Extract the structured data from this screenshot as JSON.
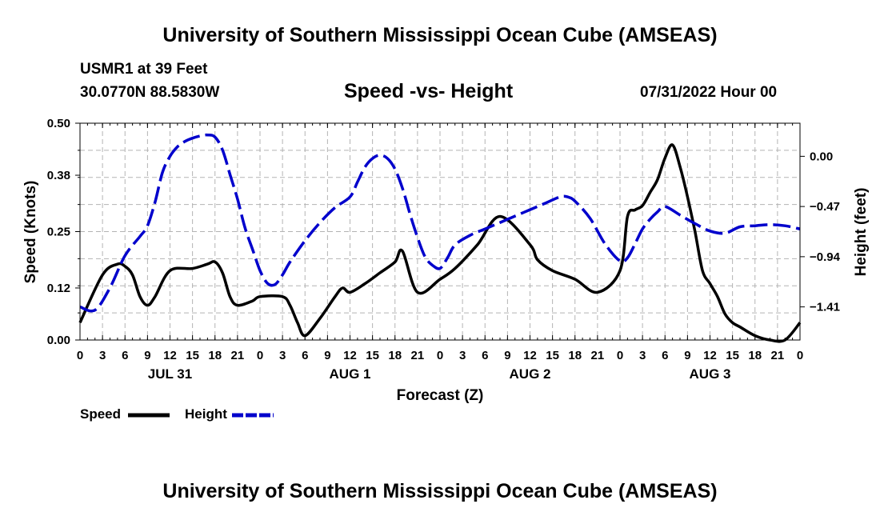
{
  "header": {
    "title": "University of Southern Mississippi Ocean Cube (AMSEAS)",
    "station": "USMR1 at 39 Feet",
    "coords": "30.0770N  88.5830W",
    "date": "07/31/2022 Hour 00"
  },
  "footer": {
    "title": "University of Southern Mississippi Ocean Cube (AMSEAS)"
  },
  "chart_data": {
    "type": "line",
    "title": "Speed -vs- Height",
    "xlabel": "Forecast (Z)",
    "ylabel": "Speed (Knots)",
    "y2label": "Height (feet)",
    "x_range_hours": [
      0,
      96
    ],
    "ylim": [
      0,
      0.5
    ],
    "y2lim": [
      -1.72,
      0.31
    ],
    "y_ticks": [
      "0.00",
      "0.12",
      "0.25",
      "0.38",
      "0.50"
    ],
    "y2_ticks": [
      "0.00",
      "−0.47",
      "−0.94",
      "−1.41"
    ],
    "y2_tick_values": [
      0.0,
      -0.47,
      -0.94,
      -1.41
    ],
    "x_tick_labels": [
      "0",
      "3",
      "6",
      "9",
      "12",
      "15",
      "18",
      "21",
      "0",
      "3",
      "6",
      "9",
      "12",
      "15",
      "18",
      "21",
      "0",
      "3",
      "6",
      "9",
      "12",
      "15",
      "18",
      "21",
      "0",
      "3",
      "6",
      "9",
      "12",
      "15",
      "18",
      "21",
      "0"
    ],
    "day_labels": [
      {
        "hour": 12,
        "label": "JUL 31"
      },
      {
        "hour": 36,
        "label": "AUG 1"
      },
      {
        "hour": 60,
        "label": "AUG 2"
      },
      {
        "hour": 84,
        "label": "AUG 3"
      }
    ],
    "series": [
      {
        "name": "Speed",
        "axis": "left",
        "color": "#000000",
        "style": "solid",
        "x": [
          0,
          3,
          5,
          6,
          7,
          8,
          9,
          10,
          12,
          15,
          17,
          18,
          19,
          20,
          21,
          23,
          24,
          27,
          28,
          29,
          30,
          32,
          34,
          35,
          36,
          38,
          40,
          42,
          43,
          45,
          48,
          50,
          53,
          56,
          60,
          61,
          63,
          66,
          69,
          72,
          73,
          74,
          75,
          76,
          77,
          78,
          79,
          80,
          81,
          82,
          83,
          84,
          85,
          86,
          87,
          88,
          90,
          92,
          94,
          96
        ],
        "y": [
          0.04,
          0.15,
          0.175,
          0.17,
          0.15,
          0.1,
          0.08,
          0.1,
          0.16,
          0.165,
          0.175,
          0.18,
          0.155,
          0.1,
          0.08,
          0.09,
          0.1,
          0.1,
          0.08,
          0.04,
          0.01,
          0.05,
          0.1,
          0.12,
          0.11,
          0.13,
          0.155,
          0.18,
          0.205,
          0.11,
          0.14,
          0.165,
          0.22,
          0.285,
          0.22,
          0.185,
          0.16,
          0.14,
          0.11,
          0.16,
          0.285,
          0.3,
          0.31,
          0.34,
          0.37,
          0.42,
          0.45,
          0.4,
          0.33,
          0.25,
          0.16,
          0.13,
          0.1,
          0.06,
          0.04,
          0.03,
          0.01,
          0.0,
          0.0,
          0.04
        ]
      },
      {
        "name": "Height",
        "axis": "right",
        "color": "#0000cc",
        "style": "dashed",
        "x": [
          0,
          2,
          4,
          6,
          8,
          9,
          10,
          11,
          12,
          13,
          14,
          15,
          16,
          17,
          18,
          19,
          20,
          21,
          22,
          23,
          24,
          25,
          26,
          27,
          28,
          30,
          32,
          34,
          36,
          37,
          38,
          39,
          40,
          41,
          42,
          43,
          44,
          45,
          46,
          47,
          48,
          49,
          50,
          52,
          54,
          56,
          58,
          60,
          62,
          64,
          65,
          66,
          68,
          70,
          72,
          73,
          74,
          75,
          76,
          77,
          78,
          80,
          82,
          84,
          86,
          88,
          90,
          92,
          94,
          96
        ],
        "y": [
          -1.41,
          -1.44,
          -1.23,
          -0.93,
          -0.75,
          -0.65,
          -0.43,
          -0.15,
          0.0,
          0.09,
          0.14,
          0.17,
          0.19,
          0.2,
          0.18,
          0.06,
          -0.17,
          -0.4,
          -0.67,
          -0.87,
          -1.07,
          -1.19,
          -1.2,
          -1.11,
          -0.99,
          -0.79,
          -0.62,
          -0.48,
          -0.38,
          -0.24,
          -0.1,
          -0.02,
          0.01,
          -0.02,
          -0.12,
          -0.3,
          -0.54,
          -0.76,
          -0.94,
          -1.02,
          -1.05,
          -0.95,
          -0.83,
          -0.74,
          -0.68,
          -0.62,
          -0.56,
          -0.5,
          -0.44,
          -0.38,
          -0.38,
          -0.42,
          -0.58,
          -0.82,
          -0.98,
          -0.95,
          -0.82,
          -0.68,
          -0.59,
          -0.52,
          -0.47,
          -0.55,
          -0.63,
          -0.7,
          -0.72,
          -0.66,
          -0.65,
          -0.64,
          -0.65,
          -0.68
        ]
      }
    ],
    "legend": {
      "position": "bottom-left",
      "entries": [
        "Speed",
        "Height"
      ]
    }
  }
}
